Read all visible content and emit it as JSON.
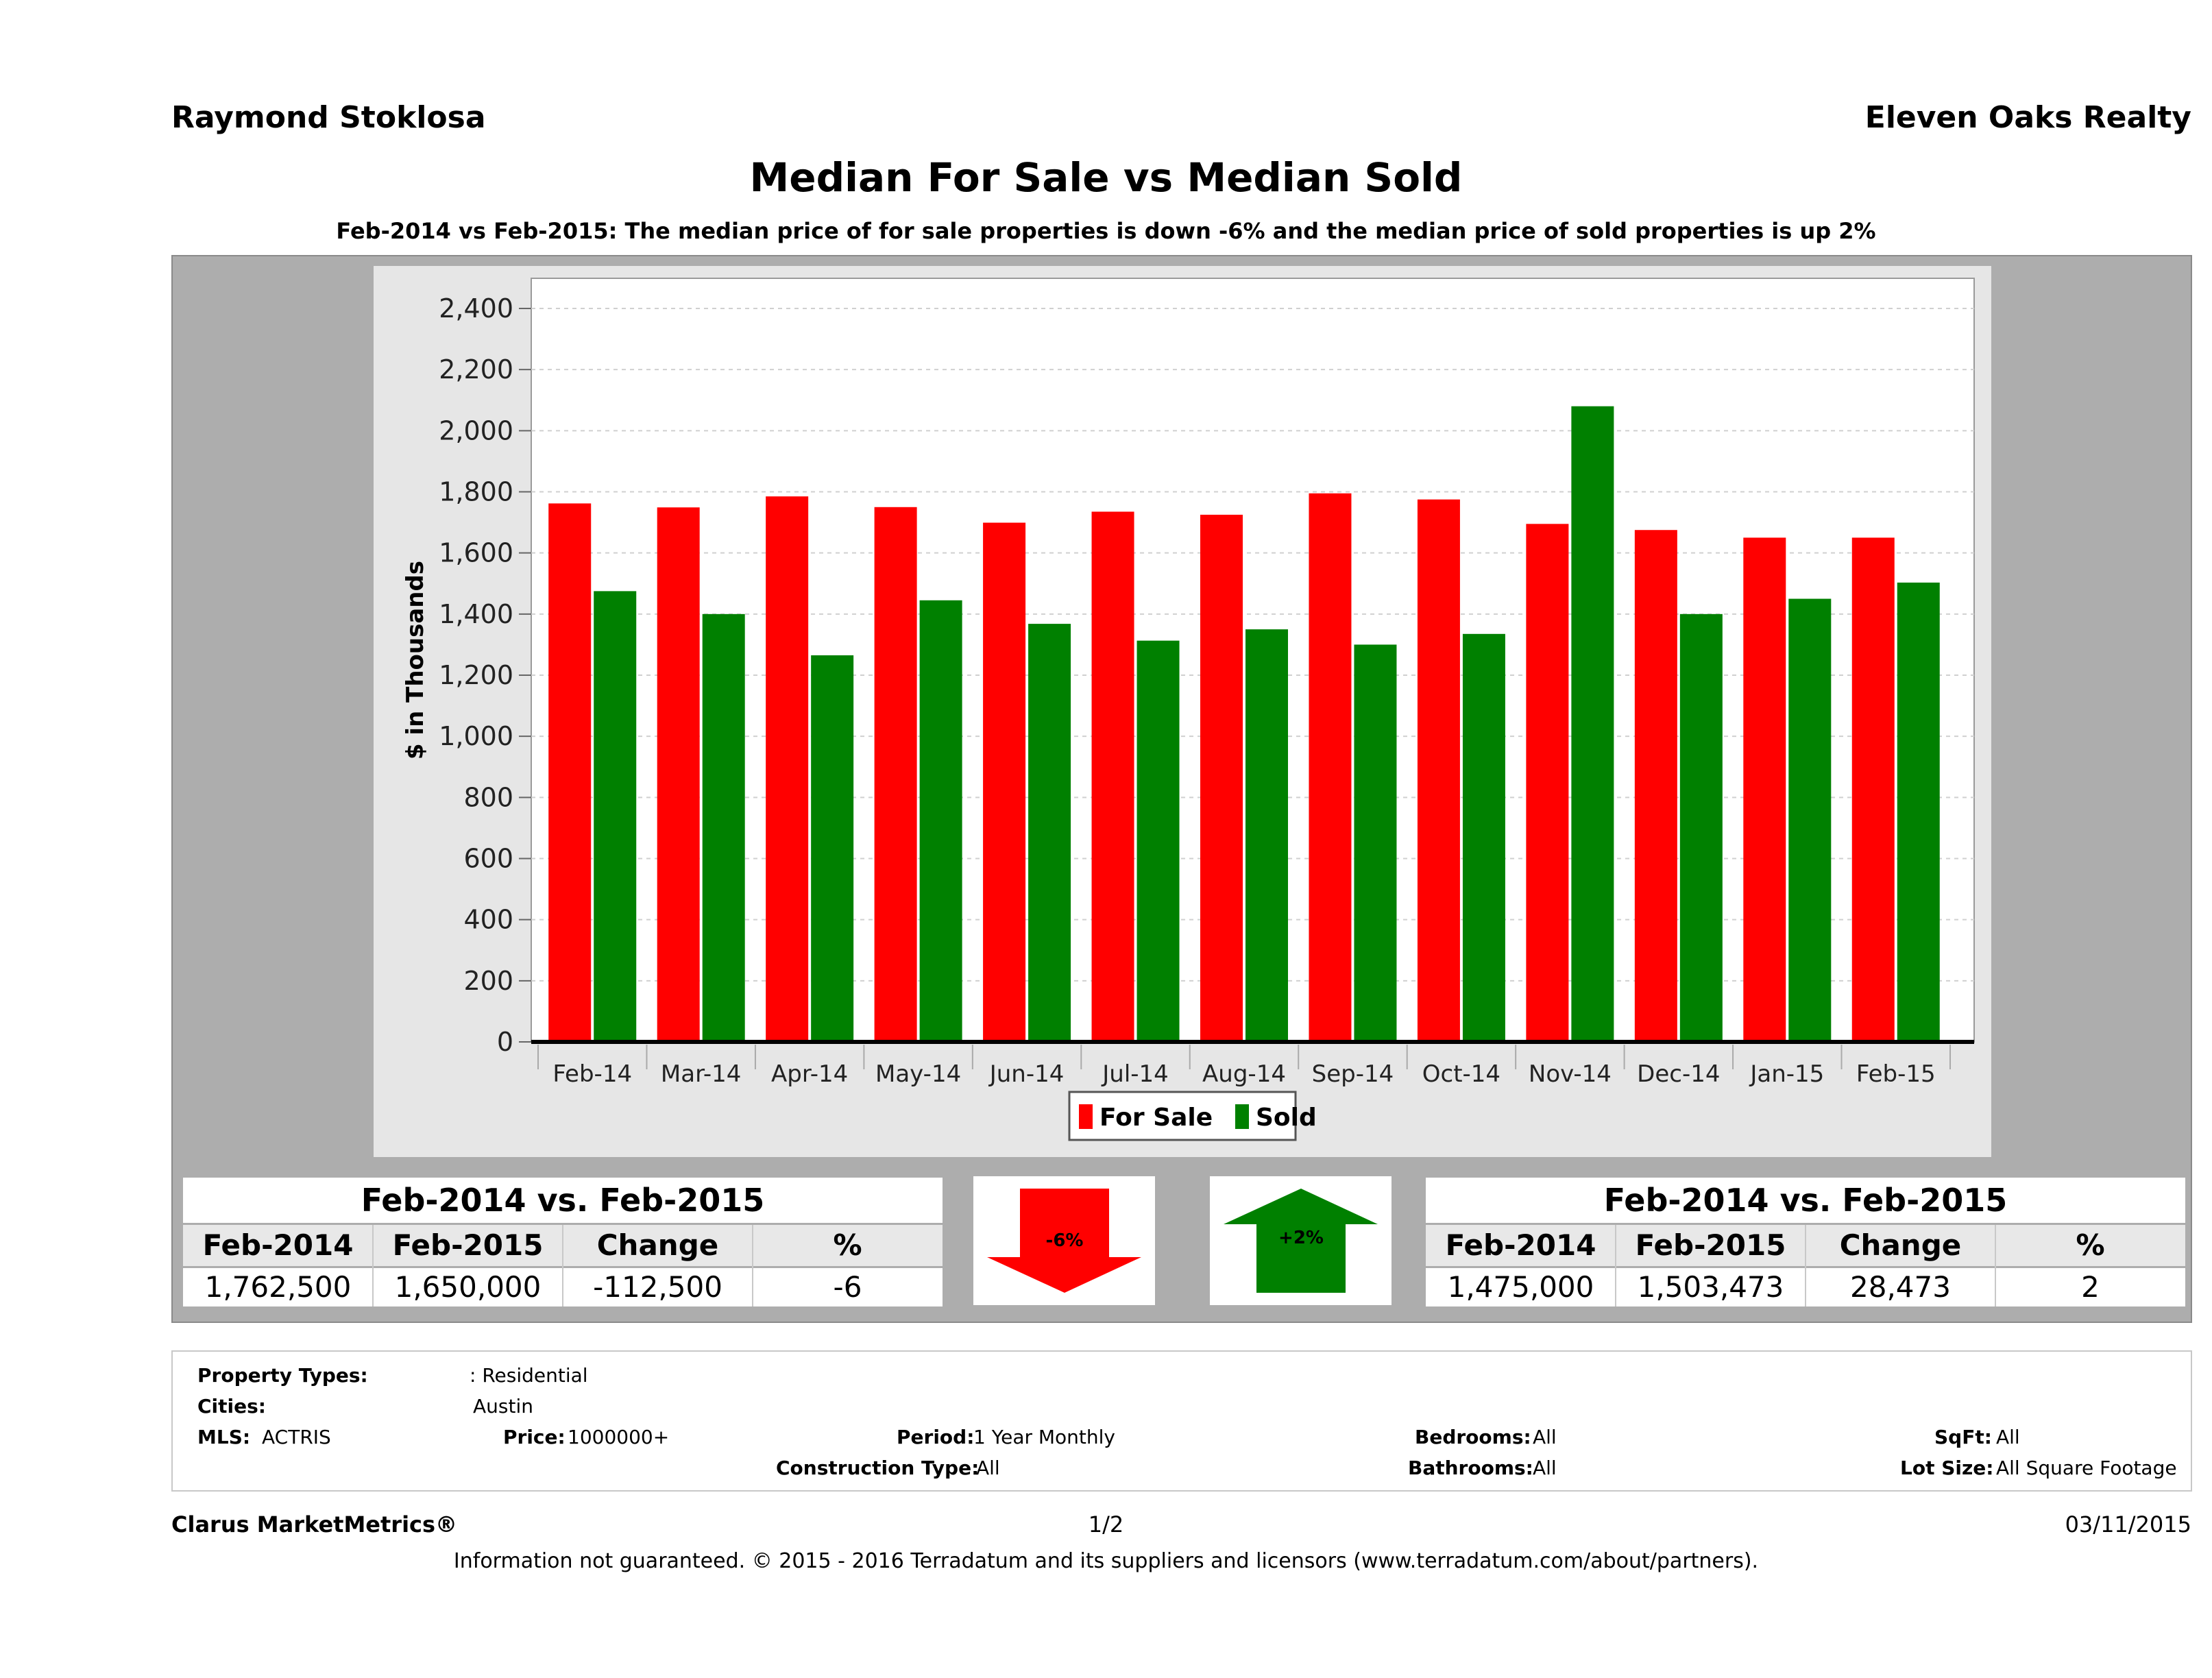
{
  "header": {
    "agent": "Raymond Stoklosa",
    "brokerage": "Eleven Oaks Realty",
    "title": "Median For Sale vs Median Sold",
    "subtitle": "Feb-2014 vs Feb-2015: The median price of for sale properties is down -6% and the median price of sold properties is up 2%"
  },
  "chart_data": {
    "type": "bar",
    "ylabel": "$ in Thousands",
    "ylim": [
      0,
      2400
    ],
    "yticks": [
      "0",
      "200",
      "400",
      "600",
      "800",
      "1,000",
      "1,200",
      "1,400",
      "1,600",
      "1,800",
      "2,000",
      "2,200",
      "2,400"
    ],
    "categories": [
      "Feb-14",
      "Mar-14",
      "Apr-14",
      "May-14",
      "Jun-14",
      "Jul-14",
      "Aug-14",
      "Sep-14",
      "Oct-14",
      "Nov-14",
      "Dec-14",
      "Jan-15",
      "Feb-15"
    ],
    "series": [
      {
        "name": "For Sale",
        "color": "#ff0000",
        "values": [
          1762,
          1749,
          1785,
          1750,
          1699,
          1735,
          1725,
          1795,
          1775,
          1695,
          1675,
          1650,
          1650
        ]
      },
      {
        "name": "Sold",
        "color": "#008000",
        "values": [
          1475,
          1400,
          1265,
          1445,
          1368,
          1313,
          1350,
          1300,
          1335,
          2080,
          1400,
          1450,
          1503
        ]
      }
    ],
    "legend_position": "bottom",
    "grid": true
  },
  "for_sale_stats": {
    "caption": "Feb-2014 vs. Feb-2015",
    "headers": [
      "Feb-2014",
      "Feb-2015",
      "Change",
      "%"
    ],
    "values": [
      "1,762,500",
      "1,650,000",
      "-112,500",
      "-6"
    ]
  },
  "sold_stats": {
    "caption": "Feb-2014 vs. Feb-2015",
    "headers": [
      "Feb-2014",
      "Feb-2015",
      "Change",
      "%"
    ],
    "values": [
      "1,475,000",
      "1,503,473",
      "28,473",
      "2"
    ]
  },
  "arrows": {
    "down_label": "-6%",
    "up_label": "+2%",
    "down_color": "#ff0000",
    "up_color": "#008000"
  },
  "criteria": {
    "property_types_label": "Property Types:",
    "property_types_value": ": Residential",
    "cities_label": "Cities:",
    "cities_value": "Austin",
    "mls_label": "MLS:",
    "mls_value": "ACTRIS",
    "price_label": "Price:",
    "price_value": "1000000+",
    "period_label": "Period:",
    "period_value": "1 Year Monthly",
    "construction_label": "Construction Type:",
    "construction_value": "All",
    "bedrooms_label": "Bedrooms:",
    "bedrooms_value": "All",
    "bathrooms_label": "Bathrooms:",
    "bathrooms_value": "All",
    "sqft_label": "SqFt:",
    "sqft_value": "All",
    "lotsize_label": "Lot Size:",
    "lotsize_value": "All Square Footage"
  },
  "footer": {
    "product": "Clarus MarketMetrics®",
    "page": "1/2",
    "date": "03/11/2015",
    "disclaimer": "Information not guaranteed. © 2015 - 2016 Terradatum and its suppliers and licensors (www.terradatum.com/about/partners)."
  }
}
